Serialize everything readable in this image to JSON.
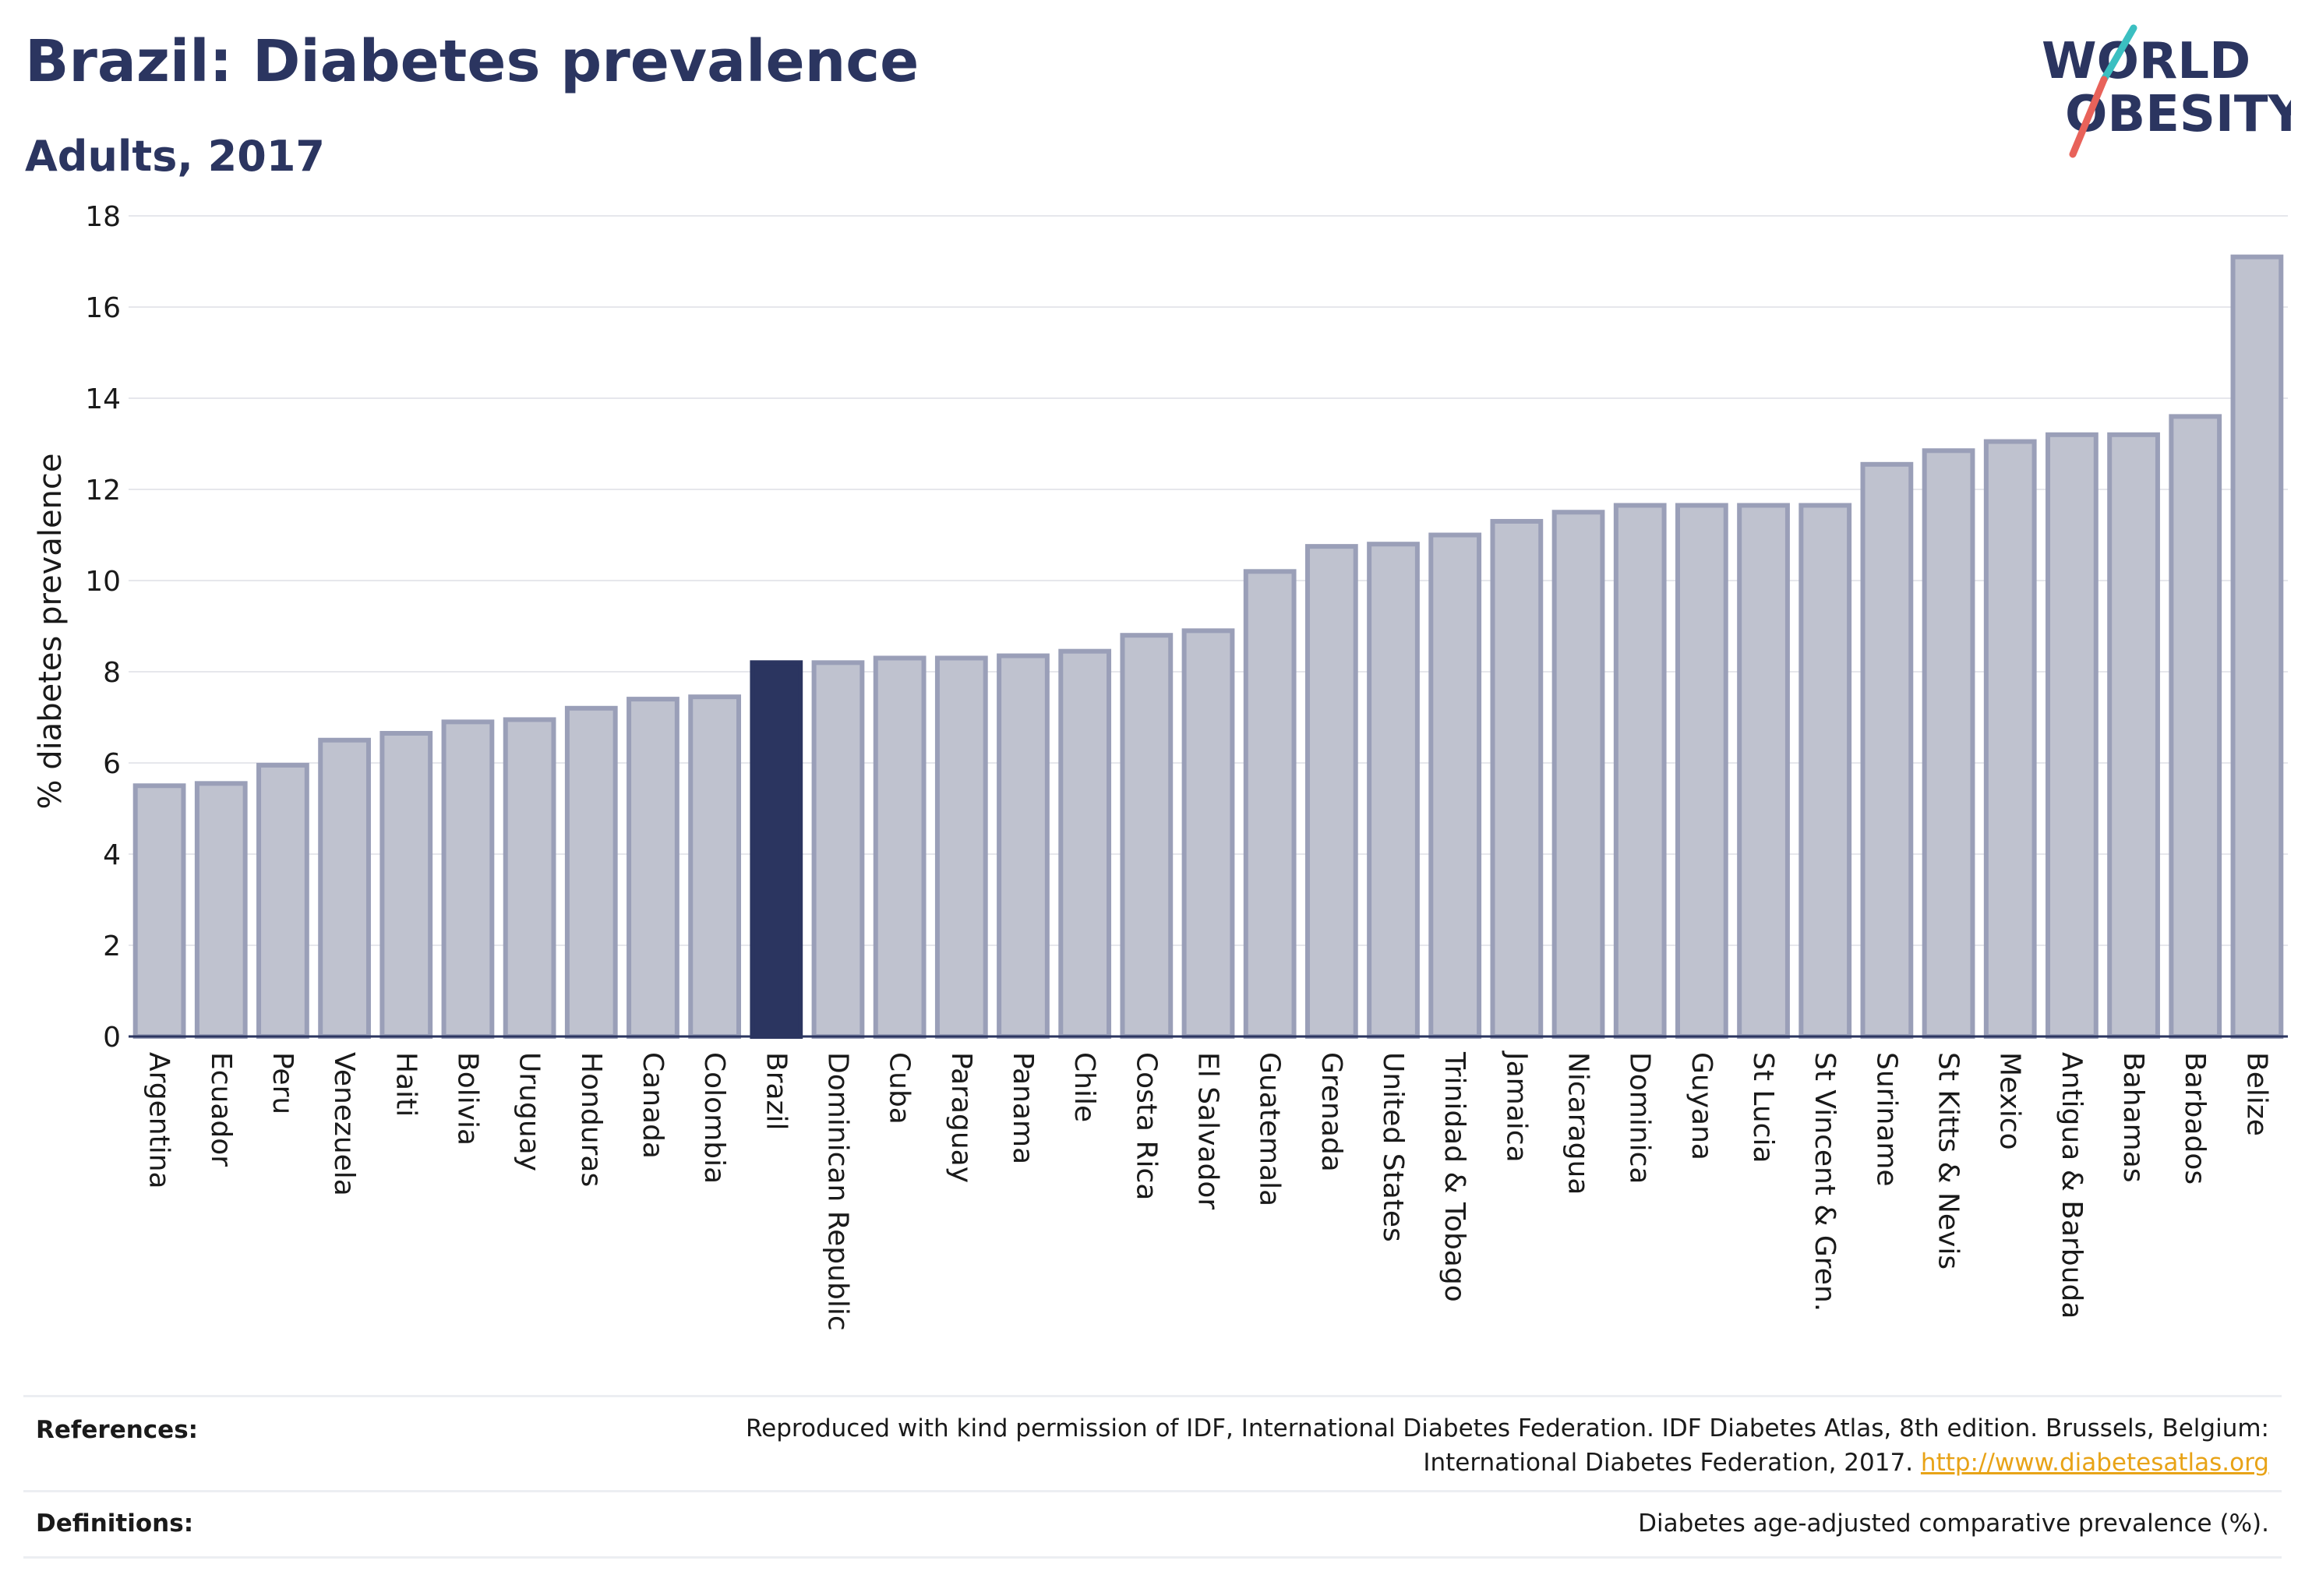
{
  "header": {
    "title": "Brazil: Diabetes prevalence",
    "subtitle": "Adults, 2017"
  },
  "logo": {
    "line1": "WORLD",
    "line2": "OBESITY",
    "slash_colors": [
      "#3bbfc1",
      "#e8625a"
    ]
  },
  "chart_data": {
    "type": "bar",
    "title": "Brazil: Diabetes prevalence",
    "subtitle": "Adults, 2017",
    "ylabel": "% diabetes prevalence",
    "xlabel": "",
    "ylim": [
      0,
      18
    ],
    "yticks": [
      0,
      2,
      4,
      6,
      8,
      10,
      12,
      14,
      16,
      18
    ],
    "grid": true,
    "highlight": "Brazil",
    "colors": {
      "bar": "#bfc2cf",
      "bar_border": "#9a9fb8",
      "highlight": "#2b3560"
    },
    "categories": [
      "Argentina",
      "Ecuador",
      "Peru",
      "Venezuela",
      "Haiti",
      "Bolivia",
      "Uruguay",
      "Honduras",
      "Canada",
      "Colombia",
      "Brazil",
      "Dominican Republic",
      "Cuba",
      "Paraguay",
      "Panama",
      "Chile",
      "Costa Rica",
      "El Salvador",
      "Guatemala",
      "Grenada",
      "United States",
      "Trinidad & Tobago",
      "Jamaica",
      "Nicaragua",
      "Dominica",
      "Guyana",
      "St Lucia",
      "St Vincent & Gren.",
      "Suriname",
      "St Kitts & Nevis",
      "Mexico",
      "Antigua & Barbuda",
      "Bahamas",
      "Barbados",
      "Belize"
    ],
    "values": [
      5.5,
      5.55,
      5.95,
      6.5,
      6.65,
      6.9,
      6.95,
      7.2,
      7.4,
      7.45,
      8.2,
      8.2,
      8.3,
      8.3,
      8.35,
      8.45,
      8.8,
      8.9,
      10.2,
      10.75,
      10.8,
      11.0,
      11.3,
      11.5,
      11.65,
      11.65,
      11.65,
      11.65,
      12.55,
      12.85,
      13.05,
      13.2,
      13.2,
      13.6,
      17.1
    ]
  },
  "footer": {
    "references_label": "References:",
    "references_line1": "Reproduced with kind permission of IDF, International Diabetes Federation. IDF Diabetes Atlas, 8th edition. Brussels, Belgium:",
    "references_line2": "International Diabetes Federation, 2017.",
    "references_link": "http://www.diabetesatlas.org",
    "definitions_label": "Definitions:",
    "definitions_text": "Diabetes age-adjusted comparative prevalence (%)."
  }
}
